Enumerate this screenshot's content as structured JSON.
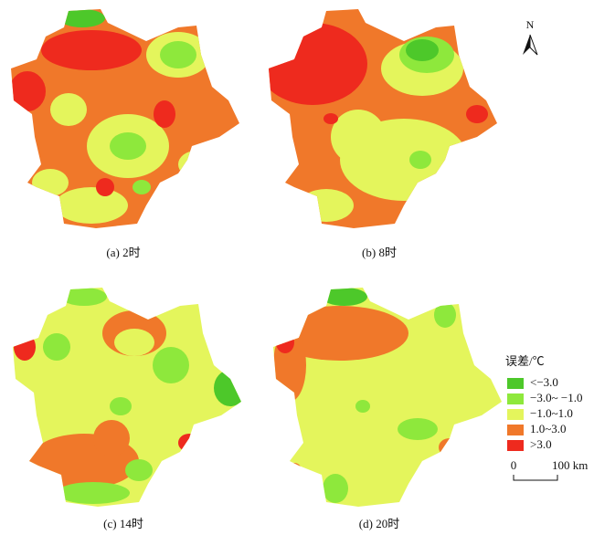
{
  "panels": [
    {
      "caption": "(a) 2时"
    },
    {
      "caption": "(b) 8时"
    },
    {
      "caption": "(c) 14时"
    },
    {
      "caption": "(d) 20时"
    }
  ],
  "north": "N",
  "legend": {
    "title": "误差/℃",
    "items": [
      {
        "label": "<−3.0",
        "color": "#4dc82a"
      },
      {
        "label": "−3.0~ −1.0",
        "color": "#8ee83c"
      },
      {
        "label": "−1.0~1.0",
        "color": "#e4f55c"
      },
      {
        "label": "1.0~3.0",
        "color": "#f0782a"
      },
      {
        "label": ">3.0",
        "color": "#ee2a1e"
      }
    ]
  },
  "scale": {
    "start": "0",
    "end": "100 km"
  }
}
